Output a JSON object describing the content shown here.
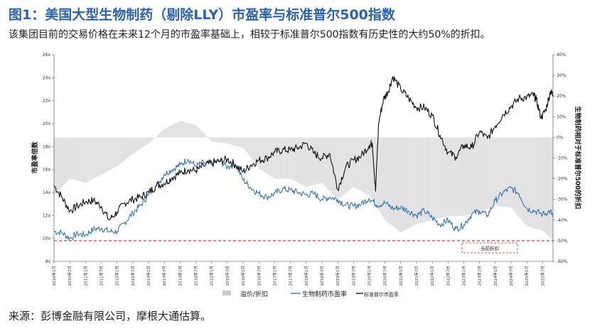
{
  "header": {
    "title": "图1：美国大型生物制药（剔除LLY）市盈率与标准普尔500指数",
    "subtitle": "该集团目前的交易价格在未来12个月的市盈率基础上，相较于标准普尔500指数有历史性的大约50%的折扣。"
  },
  "footer": {
    "source": "来源：彭博金融有限公司，摩根大通估算。"
  },
  "chart_data": {
    "type": "line",
    "ylabel": "市盈率倍数",
    "y2label": "生物制药相对于标准普尔500的折扣",
    "ylim": [
      8,
      26
    ],
    "yticks": [
      "8x",
      "10x",
      "12x",
      "14x",
      "16x",
      "18x",
      "20x",
      "22x",
      "24x",
      "26x"
    ],
    "y2lim": [
      -60,
      40
    ],
    "y2ticks": [
      "-60%",
      "-50%",
      "-40%",
      "-30%",
      "-20%",
      "-10%",
      "0%",
      "10%",
      "20%",
      "30%",
      "40%"
    ],
    "x_range": [
      2010.0,
      2025.83
    ],
    "xticks": [
      "2010年1月",
      "2010年7月",
      "2011年1月",
      "2011年7月",
      "2012年1月",
      "2012年7月",
      "2013年1月",
      "2013年7月",
      "2014年1月",
      "2014年7月",
      "2015年1月",
      "2015年7月",
      "2016年1月",
      "2016年7月",
      "2017年1月",
      "2017年7月",
      "2018年1月",
      "2018年7月",
      "2019年1月",
      "2019年7月",
      "2020年1月",
      "2020年7月",
      "2021年1月",
      "2021年7月",
      "2022年1月",
      "2022年7月",
      "2023年1月",
      "2023年7月",
      "2024年1月",
      "2024年7月",
      "2025年1月",
      "2025年7月"
    ],
    "reference_line": {
      "value_pct": -50,
      "style": "dashed",
      "color": "#d62728"
    },
    "annotation": "当前折扣",
    "legend": [
      "溢价/折扣",
      "生物制药市盈率",
      "标准普尔市盈率"
    ],
    "colors": {
      "biopharma": "#3a78b5",
      "sp500": "#111111",
      "premium": "#c9c9c9",
      "ref": "#d62728"
    },
    "series": [
      {
        "name": "生物制药市盈率",
        "axis": "left",
        "x": [
          2010.0,
          2010.25,
          2010.5,
          2010.75,
          2011.0,
          2011.25,
          2011.5,
          2011.75,
          2012.0,
          2012.25,
          2012.5,
          2012.75,
          2013.0,
          2013.25,
          2013.5,
          2013.75,
          2014.0,
          2014.25,
          2014.5,
          2014.75,
          2015.0,
          2015.25,
          2015.5,
          2015.75,
          2016.0,
          2016.25,
          2016.5,
          2016.75,
          2017.0,
          2017.25,
          2017.5,
          2017.75,
          2018.0,
          2018.25,
          2018.5,
          2018.75,
          2019.0,
          2019.25,
          2019.5,
          2019.75,
          2020.0,
          2020.25,
          2020.5,
          2020.75,
          2021.0,
          2021.25,
          2021.5,
          2021.75,
          2022.0,
          2022.25,
          2022.5,
          2022.75,
          2023.0,
          2023.25,
          2023.5,
          2023.75,
          2024.0,
          2024.25,
          2024.5,
          2024.75,
          2025.0,
          2025.25,
          2025.5,
          2025.75,
          2025.83
        ],
        "y": [
          10.6,
          10.5,
          10.0,
          10.4,
          10.3,
          10.8,
          10.9,
          10.6,
          10.6,
          11.4,
          12.2,
          12.9,
          13.8,
          14.6,
          15.6,
          16.0,
          16.4,
          16.9,
          16.3,
          16.6,
          16.4,
          16.8,
          16.2,
          16.5,
          15.1,
          14.4,
          13.9,
          13.6,
          13.9,
          14.3,
          14.2,
          14.0,
          13.8,
          13.9,
          13.4,
          13.6,
          13.4,
          12.9,
          12.8,
          13.0,
          13.5,
          12.9,
          13.1,
          12.6,
          12.7,
          12.4,
          12.0,
          12.4,
          11.8,
          11.2,
          11.6,
          10.8,
          11.2,
          12.1,
          12.4,
          12.0,
          13.3,
          14.0,
          14.4,
          13.9,
          12.6,
          12.4,
          12.1,
          12.4,
          11.8
        ]
      },
      {
        "name": "标准普尔市盈率",
        "axis": "left",
        "x": [
          2010.0,
          2010.25,
          2010.5,
          2010.75,
          2011.0,
          2011.25,
          2011.5,
          2011.75,
          2012.0,
          2012.25,
          2012.5,
          2012.75,
          2013.0,
          2013.25,
          2013.5,
          2013.75,
          2014.0,
          2014.25,
          2014.5,
          2014.75,
          2015.0,
          2015.25,
          2015.5,
          2015.75,
          2016.0,
          2016.25,
          2016.5,
          2016.75,
          2017.0,
          2017.25,
          2017.5,
          2017.75,
          2018.0,
          2018.25,
          2018.5,
          2018.75,
          2019.0,
          2019.25,
          2019.5,
          2019.75,
          2020.0,
          2020.1,
          2020.2,
          2020.3,
          2020.45,
          2020.6,
          2020.75,
          2021.0,
          2021.25,
          2021.5,
          2021.75,
          2022.0,
          2022.25,
          2022.5,
          2022.75,
          2023.0,
          2023.25,
          2023.5,
          2023.75,
          2024.0,
          2024.25,
          2024.5,
          2024.75,
          2025.0,
          2025.2,
          2025.3,
          2025.45,
          2025.6,
          2025.75,
          2025.83
        ],
        "y": [
          14.6,
          13.6,
          12.4,
          12.8,
          13.2,
          13.3,
          12.8,
          11.6,
          12.3,
          13.1,
          13.4,
          13.6,
          14.0,
          14.6,
          14.8,
          15.3,
          15.7,
          16.0,
          15.9,
          16.3,
          16.6,
          16.7,
          16.9,
          16.4,
          15.8,
          16.4,
          16.8,
          17.0,
          17.5,
          17.7,
          17.7,
          17.9,
          18.3,
          17.4,
          17.0,
          17.4,
          14.3,
          16.2,
          16.8,
          17.2,
          18.1,
          18.3,
          14.1,
          20.1,
          22.1,
          22.8,
          24.1,
          23.0,
          22.2,
          21.4,
          21.4,
          20.7,
          19.0,
          17.5,
          17.1,
          18.1,
          17.9,
          19.3,
          18.7,
          19.8,
          20.8,
          21.5,
          22.2,
          22.3,
          22.5,
          22.1,
          20.5,
          21.2,
          22.8,
          22.5
        ]
      },
      {
        "name": "溢价/折扣",
        "axis": "right",
        "x": [
          2010.0,
          2010.5,
          2011.0,
          2011.5,
          2012.0,
          2012.5,
          2013.0,
          2013.5,
          2014.0,
          2014.5,
          2015.0,
          2015.5,
          2016.0,
          2016.5,
          2017.0,
          2017.5,
          2018.0,
          2018.5,
          2019.0,
          2019.5,
          2020.0,
          2020.5,
          2021.0,
          2021.5,
          2022.0,
          2022.5,
          2023.0,
          2023.5,
          2024.0,
          2024.5,
          2025.0,
          2025.5,
          2025.83
        ],
        "y": [
          -28,
          -20,
          -22,
          -18,
          -14,
          -8,
          -3,
          4,
          8,
          6,
          -2,
          -3,
          -5,
          -15,
          -20,
          -20,
          -24,
          -22,
          -30,
          -24,
          -28,
          -40,
          -46,
          -42,
          -40,
          -38,
          -38,
          -36,
          -33,
          -34,
          -43,
          -45,
          -50
        ]
      }
    ]
  }
}
